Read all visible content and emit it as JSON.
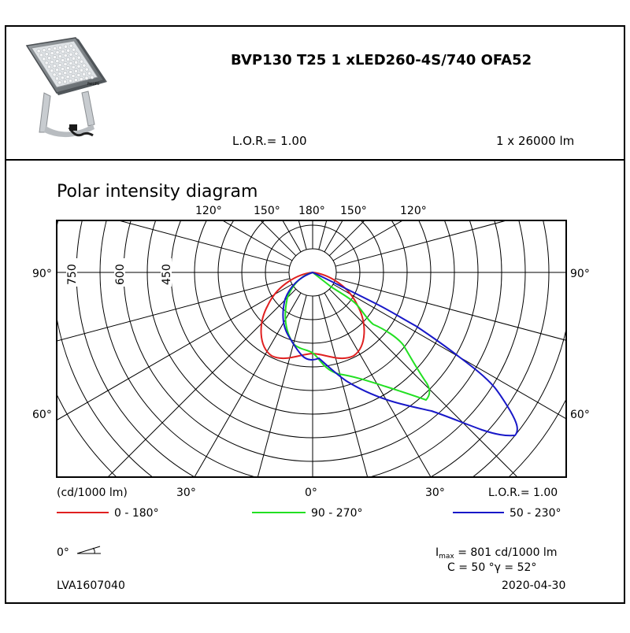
{
  "header": {
    "product_code": "BVP130 T25 1 xLED260-4S/740 OFA52",
    "lor": "L.O.R.= 1.00",
    "flux": "1 x 26000 lm"
  },
  "diagram": {
    "title": "Polar intensity diagram",
    "top_angle_labels": [
      "120°",
      "150°",
      "180°",
      "150°",
      "120°"
    ],
    "side_labels": {
      "left_90": "90°",
      "right_90": "90°",
      "left_60": "60°",
      "right_60": "60°"
    },
    "radial_labels": [
      "750",
      "600",
      "450"
    ],
    "bottom_labels": {
      "unit": "(cd/1000 lm)",
      "left_30": "30°",
      "center_0": "0°",
      "right_30": "30°",
      "lor": "L.O.R.= 1.00"
    }
  },
  "legend": [
    {
      "label": "0 - 180°",
      "color": "#e02020"
    },
    {
      "label": "90 - 270°",
      "color": "#22e022"
    },
    {
      "label": "50 - 230°",
      "color": "#1818c8"
    }
  ],
  "footer": {
    "tilt_label": "0°",
    "imax_prefix": "I",
    "imax_sub": "max",
    "imax_value": " = 801 cd/1000 lm",
    "c_gamma": "C = 50  °γ = 52°",
    "doc_code": "LVA1607040",
    "date": "2020-04-30"
  },
  "colors": {
    "curve_0_180": "#e02020",
    "curve_90_270": "#22e022",
    "curve_50_230": "#1818c8",
    "grid": "#000000"
  },
  "icons": [
    "floodlight-product-photo",
    "tilt-angle-icon"
  ]
}
